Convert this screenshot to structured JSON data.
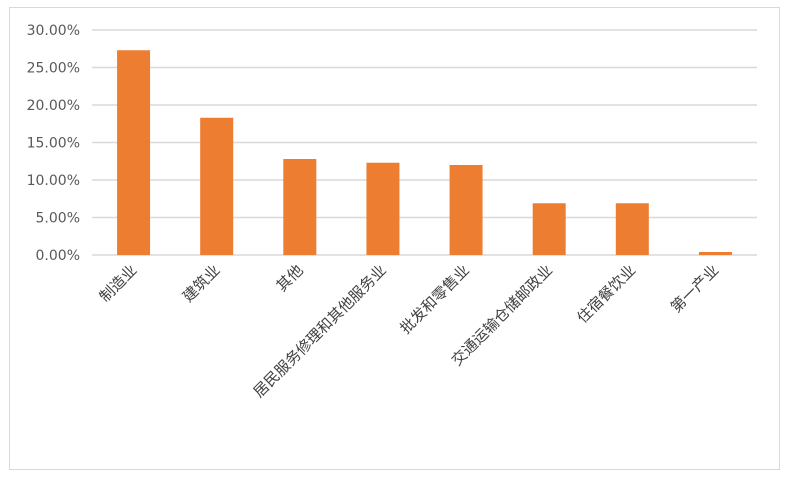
{
  "chart_data": {
    "type": "bar",
    "title": "",
    "xlabel": "",
    "ylabel": "",
    "categories": [
      "制造业",
      "建筑业",
      "其他",
      "居民服务修理和其他服务业",
      "批发和零售业",
      "交通运输仓储邮政业",
      "住宿餐饮业",
      "第一产业"
    ],
    "values": [
      27.3,
      18.3,
      12.8,
      12.3,
      12.0,
      6.9,
      6.9,
      0.4
    ],
    "value_unit": "%",
    "ylim": [
      0,
      30
    ],
    "yticks": [
      "0.00%",
      "5.00%",
      "10.00%",
      "15.00%",
      "20.00%",
      "25.00%",
      "30.00%"
    ],
    "grid": true,
    "legend": "none",
    "colors": {
      "bar": "#ed7d31",
      "grid": "#d9d9d9"
    }
  }
}
